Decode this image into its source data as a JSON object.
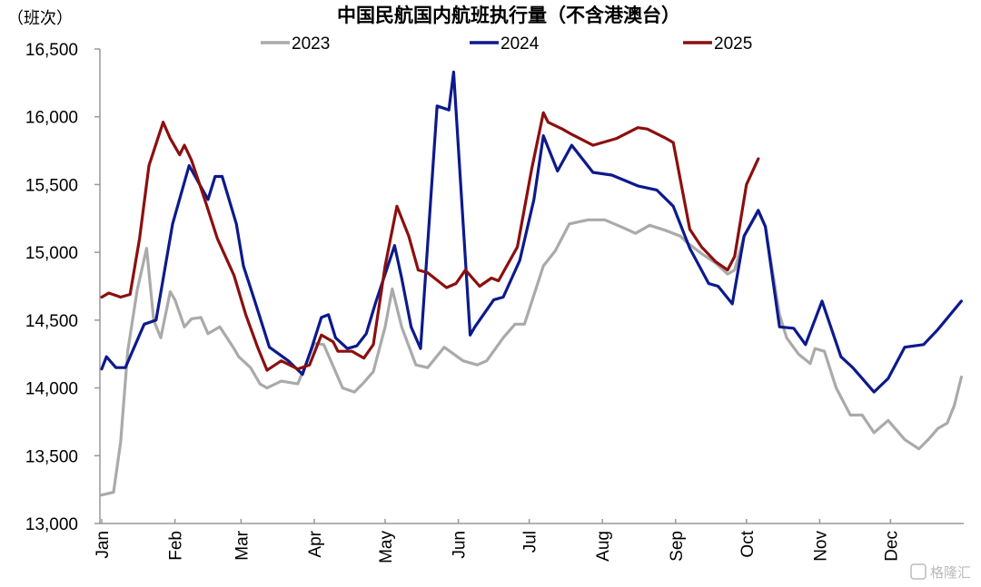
{
  "chart_data": {
    "type": "line",
    "title": "中国民航国内航班执行量（不含港澳台）",
    "ylabel": "（班次）",
    "xlabel": "",
    "x_unit": "day_of_year",
    "ylim": [
      13000,
      16500
    ],
    "yticks": [
      13000,
      13500,
      14000,
      14500,
      15000,
      15500,
      16000,
      16500
    ],
    "ytick_labels": [
      "13,000",
      "13,500",
      "14,000",
      "14,500",
      "15,000",
      "15,500",
      "16,000",
      "16,500"
    ],
    "months": [
      {
        "label": "Jan",
        "day": 0
      },
      {
        "label": "Feb",
        "day": 31
      },
      {
        "label": "Mar",
        "day": 59
      },
      {
        "label": "Apr",
        "day": 90
      },
      {
        "label": "May",
        "day": 120
      },
      {
        "label": "Jun",
        "day": 151
      },
      {
        "label": "Jul",
        "day": 181
      },
      {
        "label": "Aug",
        "day": 212
      },
      {
        "label": "Sep",
        "day": 243
      },
      {
        "label": "Oct",
        "day": 273
      },
      {
        "label": "Nov",
        "day": 304
      },
      {
        "label": "Dec",
        "day": 334
      }
    ],
    "xlim": [
      0,
      365
    ],
    "grid": false,
    "legend_position": "top-center",
    "series": [
      {
        "name": "2023",
        "color": "#aaaaaa",
        "points": [
          [
            0,
            13210
          ],
          [
            5,
            13230
          ],
          [
            8,
            13600
          ],
          [
            11,
            14270
          ],
          [
            15,
            14720
          ],
          [
            19,
            15030
          ],
          [
            22,
            14500
          ],
          [
            25,
            14370
          ],
          [
            29,
            14710
          ],
          [
            31,
            14650
          ],
          [
            35,
            14450
          ],
          [
            38,
            14510
          ],
          [
            42,
            14520
          ],
          [
            45,
            14400
          ],
          [
            50,
            14450
          ],
          [
            56,
            14290
          ],
          [
            58,
            14230
          ],
          [
            63,
            14150
          ],
          [
            67,
            14030
          ],
          [
            70,
            14000
          ],
          [
            76,
            14050
          ],
          [
            83,
            14030
          ],
          [
            87,
            14200
          ],
          [
            90,
            14330
          ],
          [
            94,
            14320
          ],
          [
            98,
            14160
          ],
          [
            102,
            14000
          ],
          [
            107,
            13970
          ],
          [
            111,
            14040
          ],
          [
            115,
            14120
          ],
          [
            120,
            14450
          ],
          [
            123,
            14730
          ],
          [
            127,
            14450
          ],
          [
            133,
            14170
          ],
          [
            138,
            14150
          ],
          [
            145,
            14300
          ],
          [
            153,
            14200
          ],
          [
            159,
            14170
          ],
          [
            163,
            14200
          ],
          [
            170,
            14370
          ],
          [
            175,
            14470
          ],
          [
            179,
            14470
          ],
          [
            187,
            14900
          ],
          [
            192,
            15010
          ],
          [
            198,
            15210
          ],
          [
            206,
            15240
          ],
          [
            213,
            15240
          ],
          [
            221,
            15180
          ],
          [
            226,
            15140
          ],
          [
            232,
            15200
          ],
          [
            239,
            15160
          ],
          [
            245,
            15120
          ],
          [
            248,
            15070
          ],
          [
            254,
            14990
          ],
          [
            260,
            14920
          ],
          [
            265,
            14840
          ],
          [
            268,
            14870
          ],
          [
            272,
            15120
          ],
          [
            278,
            15300
          ],
          [
            281,
            15190
          ],
          [
            287,
            14540
          ],
          [
            290,
            14370
          ],
          [
            295,
            14250
          ],
          [
            300,
            14180
          ],
          [
            302,
            14290
          ],
          [
            306,
            14270
          ],
          [
            311,
            14000
          ],
          [
            317,
            13800
          ],
          [
            322,
            13800
          ],
          [
            327,
            13670
          ],
          [
            333,
            13760
          ],
          [
            340,
            13620
          ],
          [
            346,
            13550
          ],
          [
            350,
            13620
          ],
          [
            354,
            13700
          ],
          [
            358,
            13740
          ],
          [
            361,
            13870
          ],
          [
            364,
            14080
          ]
        ]
      },
      {
        "name": "2024",
        "color": "#0c1a8c",
        "points": [
          [
            0,
            14140
          ],
          [
            2,
            14230
          ],
          [
            6,
            14150
          ],
          [
            10,
            14150
          ],
          [
            18,
            14470
          ],
          [
            23,
            14500
          ],
          [
            30,
            15210
          ],
          [
            37,
            15640
          ],
          [
            45,
            15390
          ],
          [
            48,
            15560
          ],
          [
            51,
            15560
          ],
          [
            57,
            15210
          ],
          [
            60,
            14900
          ],
          [
            65,
            14630
          ],
          [
            71,
            14300
          ],
          [
            79,
            14200
          ],
          [
            85,
            14100
          ],
          [
            89,
            14300
          ],
          [
            93,
            14520
          ],
          [
            96,
            14540
          ],
          [
            99,
            14370
          ],
          [
            104,
            14290
          ],
          [
            108,
            14310
          ],
          [
            112,
            14400
          ],
          [
            116,
            14630
          ],
          [
            124,
            15050
          ],
          [
            127,
            14810
          ],
          [
            131,
            14450
          ],
          [
            135,
            14290
          ],
          [
            142,
            16080
          ],
          [
            147,
            16050
          ],
          [
            149,
            16330
          ],
          [
            156,
            14390
          ],
          [
            158,
            14450
          ],
          [
            166,
            14650
          ],
          [
            170,
            14670
          ],
          [
            177,
            14940
          ],
          [
            183,
            15390
          ],
          [
            187,
            15860
          ],
          [
            193,
            15600
          ],
          [
            199,
            15790
          ],
          [
            208,
            15590
          ],
          [
            216,
            15570
          ],
          [
            227,
            15490
          ],
          [
            235,
            15460
          ],
          [
            242,
            15340
          ],
          [
            249,
            15030
          ],
          [
            257,
            14770
          ],
          [
            261,
            14750
          ],
          [
            267,
            14620
          ],
          [
            272,
            15120
          ],
          [
            278,
            15310
          ],
          [
            281,
            15190
          ],
          [
            287,
            14450
          ],
          [
            293,
            14440
          ],
          [
            298,
            14320
          ],
          [
            305,
            14640
          ],
          [
            313,
            14230
          ],
          [
            318,
            14150
          ],
          [
            327,
            13970
          ],
          [
            333,
            14070
          ],
          [
            340,
            14300
          ],
          [
            348,
            14320
          ],
          [
            354,
            14430
          ],
          [
            364,
            14640
          ]
        ]
      },
      {
        "name": "2025",
        "color": "#8b0f0f",
        "points": [
          [
            0,
            14670
          ],
          [
            3,
            14700
          ],
          [
            8,
            14670
          ],
          [
            12,
            14690
          ],
          [
            16,
            15100
          ],
          [
            20,
            15640
          ],
          [
            26,
            15960
          ],
          [
            29,
            15840
          ],
          [
            33,
            15720
          ],
          [
            35,
            15790
          ],
          [
            38,
            15680
          ],
          [
            44,
            15370
          ],
          [
            49,
            15100
          ],
          [
            56,
            14830
          ],
          [
            61,
            14540
          ],
          [
            66,
            14300
          ],
          [
            70,
            14130
          ],
          [
            76,
            14200
          ],
          [
            83,
            14140
          ],
          [
            88,
            14170
          ],
          [
            93,
            14390
          ],
          [
            98,
            14340
          ],
          [
            100,
            14270
          ],
          [
            106,
            14270
          ],
          [
            111,
            14220
          ],
          [
            115,
            14320
          ],
          [
            120,
            14900
          ],
          [
            125,
            15340
          ],
          [
            130,
            15120
          ],
          [
            134,
            14870
          ],
          [
            138,
            14850
          ],
          [
            146,
            14740
          ],
          [
            150,
            14770
          ],
          [
            154,
            14870
          ],
          [
            160,
            14750
          ],
          [
            165,
            14810
          ],
          [
            168,
            14790
          ],
          [
            176,
            15040
          ],
          [
            182,
            15610
          ],
          [
            187,
            16030
          ],
          [
            189,
            15960
          ],
          [
            195,
            15910
          ],
          [
            199,
            15870
          ],
          [
            208,
            15790
          ],
          [
            218,
            15840
          ],
          [
            227,
            15920
          ],
          [
            231,
            15910
          ],
          [
            239,
            15840
          ],
          [
            242,
            15810
          ],
          [
            249,
            15170
          ],
          [
            254,
            15040
          ],
          [
            260,
            14930
          ],
          [
            265,
            14870
          ],
          [
            268,
            14970
          ],
          [
            273,
            15500
          ],
          [
            278,
            15690
          ]
        ]
      }
    ]
  },
  "watermark": "格隆汇"
}
